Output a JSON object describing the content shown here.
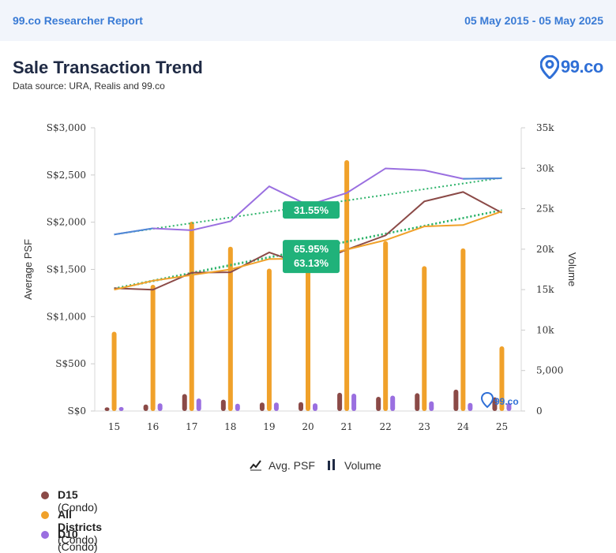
{
  "header": {
    "report_name": "99.co Researcher Report",
    "date_range": "05 May 2015 - 05 May 2025"
  },
  "page": {
    "title": "Sale Transaction Trend",
    "subtitle": "Data source: URA, Realis and 99.co"
  },
  "brand": {
    "logo_text": "99.co",
    "accent": "#2f6fd6"
  },
  "toggles": [
    {
      "label": "Avg. PSF",
      "icon": "line-chart-icon"
    },
    {
      "label": "Volume",
      "icon": "bar-chart-icon"
    }
  ],
  "chart_data": {
    "type": "bar",
    "categories": [
      "15",
      "16",
      "17",
      "18",
      "19",
      "20",
      "21",
      "22",
      "23",
      "24",
      "25"
    ],
    "xlabel": "",
    "ylabel": "Average PSF",
    "y2label": "Volume",
    "ylim": [
      0,
      3000
    ],
    "y2lim": [
      0,
      35000
    ],
    "y_ticks": [
      "S$0",
      "S$500",
      "S$1,000",
      "S$1,500",
      "S$2,000",
      "S$2,500",
      "S$3,000"
    ],
    "y2_ticks": [
      "0",
      "5,000",
      "10k",
      "15k",
      "20k",
      "25k",
      "30k",
      "35k"
    ],
    "grid": false,
    "watermark": "99.co",
    "series": [
      {
        "name": "D15",
        "suffix": "(Condo)",
        "color": "#8b4a47",
        "psf": [
          1300,
          1285,
          1465,
          1470,
          1680,
          1535,
          1710,
          1860,
          2220,
          2320,
          2100
        ],
        "volume": [
          450,
          800,
          2100,
          1400,
          1050,
          1100,
          2250,
          1750,
          2200,
          2650,
          1700
        ],
        "trend": [
          1300,
          2130
        ]
      },
      {
        "name": "All Districts",
        "suffix": "(Condo)",
        "color": "#f0a12a",
        "psf": [
          1285,
          1380,
          1440,
          1500,
          1610,
          1615,
          1710,
          1810,
          1955,
          1970,
          2115
        ],
        "volume": [
          9800,
          15600,
          23400,
          20300,
          17600,
          19900,
          31000,
          21000,
          17900,
          20100,
          8000
        ],
        "trend": [
          1290,
          2125
        ]
      },
      {
        "name": "D10",
        "suffix": "(Condo)",
        "color": "#9a6fe0",
        "psf": [
          1870,
          1935,
          1915,
          2010,
          2380,
          2180,
          2310,
          2570,
          2550,
          2460,
          2465
        ],
        "volume": [
          500,
          950,
          1550,
          900,
          1050,
          950,
          2150,
          1900,
          1200,
          1000,
          1000
        ],
        "trend": [
          1870,
          2470
        ]
      }
    ],
    "annotations": [
      "31.55%",
      "65.95%",
      "63.13%"
    ]
  }
}
